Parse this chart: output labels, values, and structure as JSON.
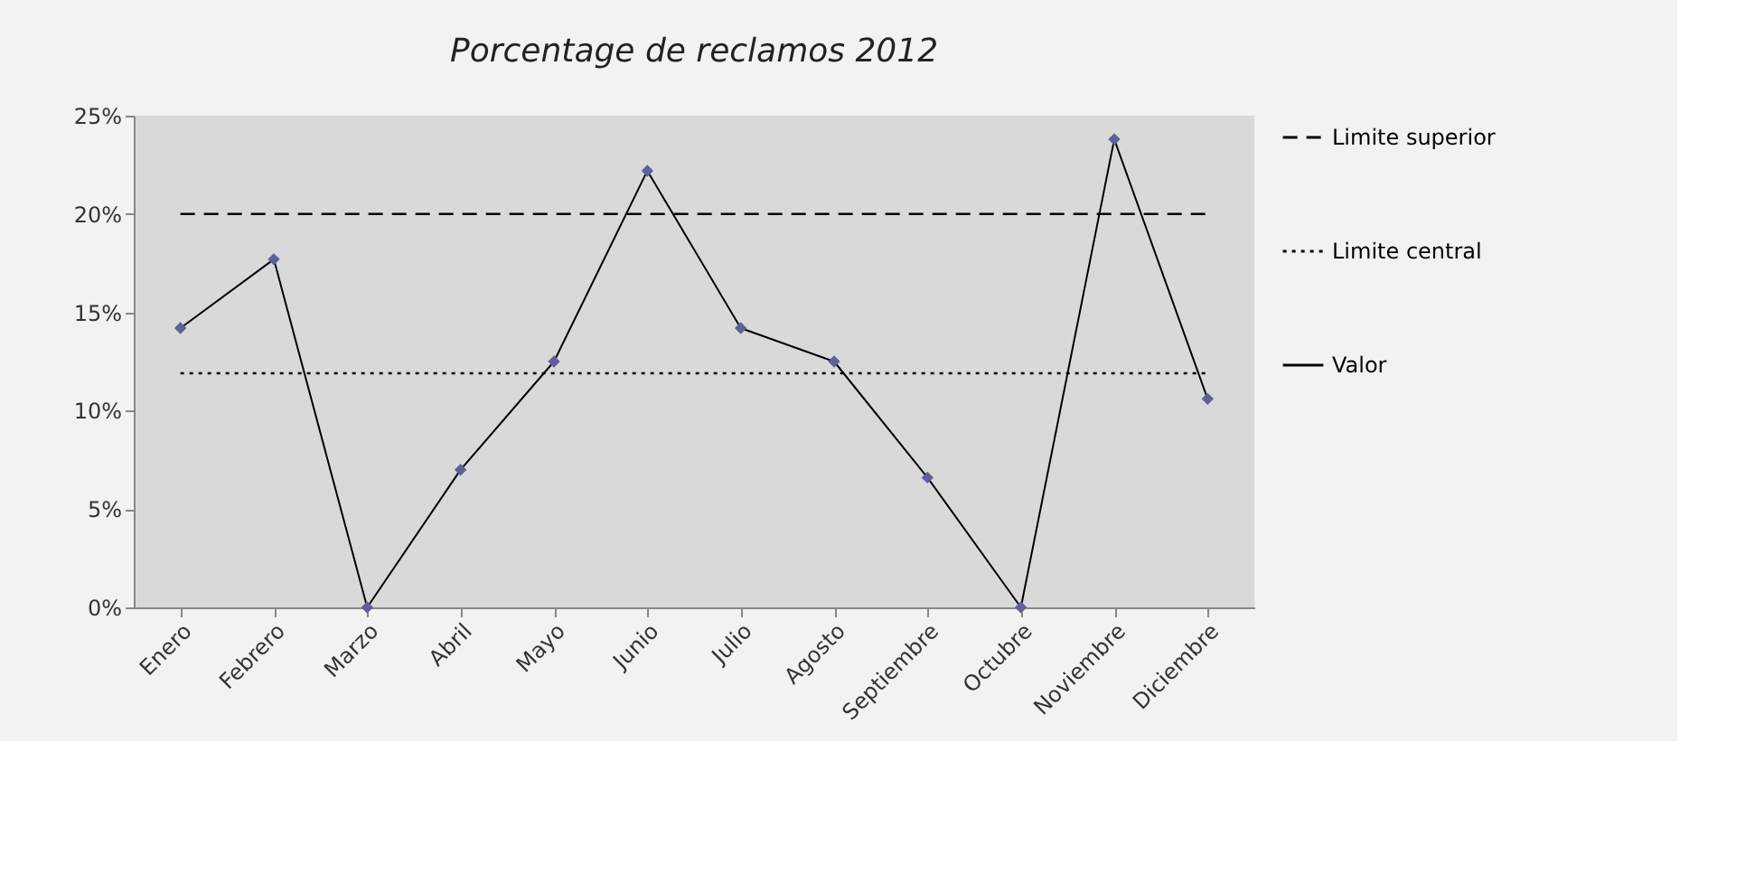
{
  "chart_data": {
    "type": "line",
    "title": "Porcentage de  reclamos 2012",
    "categories": [
      "Enero",
      "Febrero",
      "Marzo",
      "Abril",
      "Mayo",
      "Junio",
      "Julio",
      "Agosto",
      "Septiembre",
      "Octubre",
      "Noviembre",
      "Diciembre"
    ],
    "series": [
      {
        "name": "Valor",
        "color": "#5f5f9a",
        "values": [
          14.2,
          17.7,
          0,
          7.0,
          12.5,
          22.2,
          14.2,
          12.5,
          6.6,
          0,
          23.8,
          10.6
        ]
      }
    ],
    "marker": "diamond",
    "line_style": "solid",
    "ref_lines": [
      {
        "axis": "y",
        "value": 20,
        "label": "Limite superior",
        "line_style": "dashed",
        "color": "#000000"
      },
      {
        "axis": "y",
        "value": 11.9,
        "label": "Limite central",
        "line_style": "dotted",
        "color": "#000000"
      }
    ],
    "ylim": [
      0,
      25
    ],
    "yticks": [
      {
        "value": 0,
        "label": "0%"
      },
      {
        "value": 5,
        "label": "5%"
      },
      {
        "value": 10,
        "label": "10%"
      },
      {
        "value": 15,
        "label": "15%"
      },
      {
        "value": 20,
        "label": "20%"
      },
      {
        "value": 25,
        "label": "25%"
      }
    ],
    "grid": false,
    "legend": "right"
  }
}
